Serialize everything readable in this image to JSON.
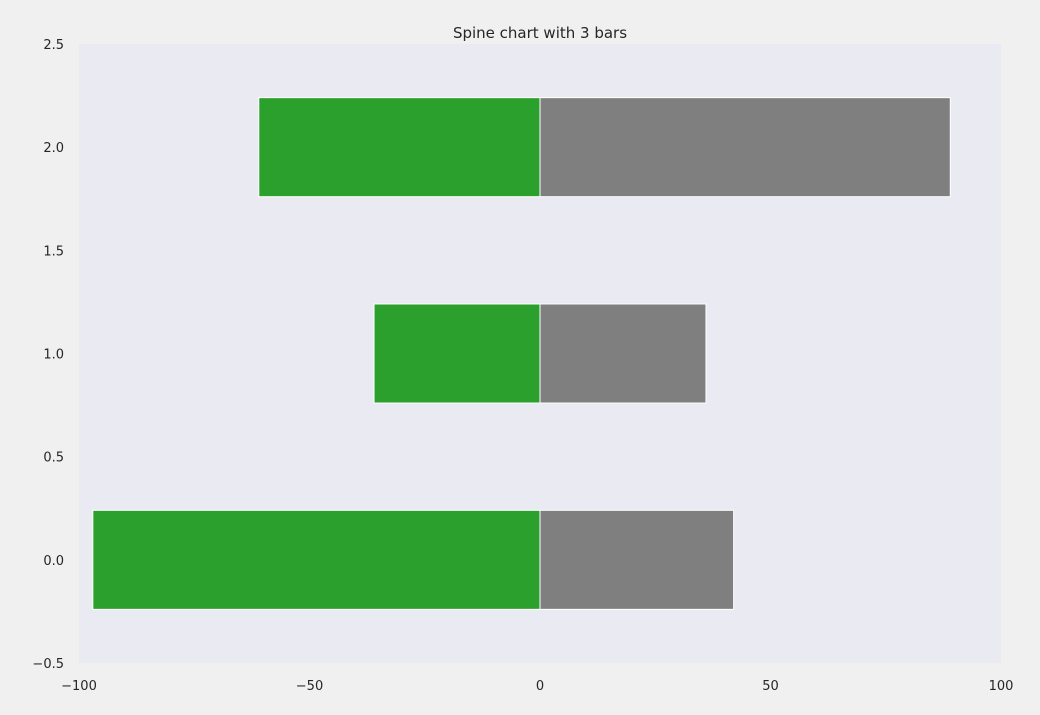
{
  "chart_data": {
    "type": "bar",
    "orientation": "horizontal",
    "stacked": "diverging",
    "title": "Spine chart with 3 bars",
    "xlabel": "",
    "ylabel": "",
    "xlim": [
      -100,
      100
    ],
    "ylim": [
      -0.5,
      2.5
    ],
    "x_ticks": [
      "−100",
      "−50",
      "0",
      "50",
      "100"
    ],
    "x_tick_values": [
      -100,
      -50,
      0,
      50,
      100
    ],
    "y_ticks": [
      "−0.5",
      "0.0",
      "0.5",
      "1.0",
      "1.5",
      "2.0",
      "2.5"
    ],
    "y_tick_values": [
      -0.5,
      0,
      0.5,
      1,
      1.5,
      2,
      2.5
    ],
    "categories": [
      0,
      1,
      2
    ],
    "bar_height": 0.48,
    "series": [
      {
        "values": [
          -97,
          -36,
          -61
        ],
        "color": "#2ca02c"
      },
      {
        "values": [
          42,
          36,
          89
        ],
        "color": "#7f7f7f"
      }
    ],
    "grid": false,
    "legend": "none",
    "plot_background": "#eaeaf2",
    "figure_background": "#f0f0f0"
  }
}
